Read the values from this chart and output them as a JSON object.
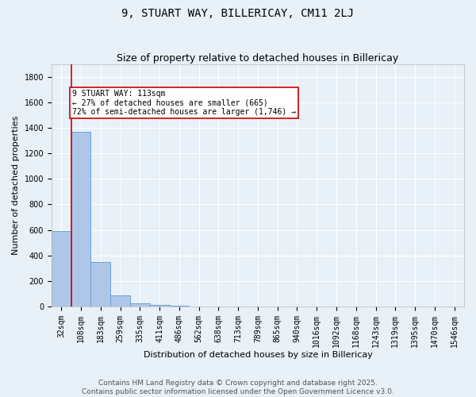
{
  "title": "9, STUART WAY, BILLERICAY, CM11 2LJ",
  "subtitle": "Size of property relative to detached houses in Billericay",
  "xlabel": "Distribution of detached houses by size in Billericay",
  "ylabel": "Number of detached properties",
  "footer_line1": "Contains HM Land Registry data © Crown copyright and database right 2025.",
  "footer_line2": "Contains public sector information licensed under the Open Government Licence v3.0.",
  "categories": [
    "32sqm",
    "108sqm",
    "183sqm",
    "259sqm",
    "335sqm",
    "411sqm",
    "486sqm",
    "562sqm",
    "638sqm",
    "713sqm",
    "789sqm",
    "865sqm",
    "940sqm",
    "1016sqm",
    "1092sqm",
    "1168sqm",
    "1243sqm",
    "1319sqm",
    "1395sqm",
    "1470sqm",
    "1546sqm"
  ],
  "values": [
    590,
    1370,
    350,
    88,
    28,
    12,
    8,
    0,
    0,
    0,
    0,
    0,
    0,
    0,
    0,
    0,
    0,
    0,
    0,
    0,
    0
  ],
  "bar_color": "#aec6e8",
  "bar_edge_color": "#5b9bd5",
  "vline_x": 0.5,
  "vline_color": "#cc0000",
  "annotation_text": "9 STUART WAY: 113sqm\n← 27% of detached houses are smaller (665)\n72% of semi-detached houses are larger (1,746) →",
  "annotation_box_color": "#ffffff",
  "annotation_box_edge": "#cc0000",
  "ylim": [
    0,
    1900
  ],
  "yticks": [
    0,
    200,
    400,
    600,
    800,
    1000,
    1200,
    1400,
    1600,
    1800
  ],
  "background_color": "#e8f0f8",
  "grid_color": "#ffffff",
  "title_fontsize": 10,
  "subtitle_fontsize": 9,
  "axis_label_fontsize": 8,
  "tick_fontsize": 7,
  "annotation_fontsize": 7,
  "footer_fontsize": 6.5
}
